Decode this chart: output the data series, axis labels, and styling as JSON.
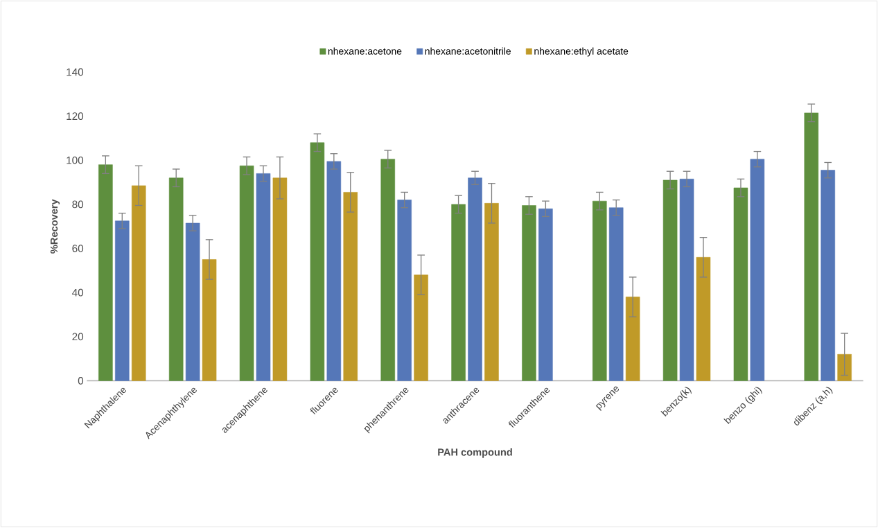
{
  "chart_data": {
    "type": "bar",
    "xlabel": "PAH compound",
    "ylabel": "%Recovery",
    "categories": [
      "Naphthalene",
      "Acenaphthylene",
      "acenaphthene",
      "fluorene",
      "phenanthrene",
      "anthracene",
      "fluoranthene",
      "pyrene",
      "benzo(k)",
      "benzo (ghi)",
      "dibenz (a,h)"
    ],
    "series": [
      {
        "name": "nhexane:acetone",
        "color": "#5e8f3e",
        "values": [
          98,
          92,
          97.5,
          108,
          100.5,
          80,
          79.5,
          81.5,
          91,
          87.5,
          121.5
        ],
        "errors": [
          4,
          4,
          4,
          4,
          4,
          4,
          4,
          4,
          4,
          4,
          4
        ]
      },
      {
        "name": "nhexane:acetonitrile",
        "color": "#5577b8",
        "values": [
          72.5,
          71.5,
          94,
          99.5,
          82,
          92,
          78,
          78.5,
          91.5,
          100.5,
          95.5
        ],
        "errors": [
          3.5,
          3.5,
          3.5,
          3.5,
          3.5,
          3,
          3.5,
          3.5,
          3.5,
          3.5,
          3.5
        ]
      },
      {
        "name": "nhexane:ethyl acetate",
        "color": "#c09a28",
        "values": [
          88.5,
          55,
          92,
          85.5,
          48,
          80.5,
          null,
          38,
          56,
          null,
          12
        ],
        "errors": [
          9,
          9,
          9.5,
          9,
          9,
          9,
          null,
          9,
          9,
          null,
          9.5
        ]
      }
    ],
    "ylim": [
      0,
      140
    ],
    "yticks": [
      0,
      20,
      40,
      60,
      80,
      100,
      120,
      140
    ],
    "grid": false,
    "legend": "top"
  }
}
